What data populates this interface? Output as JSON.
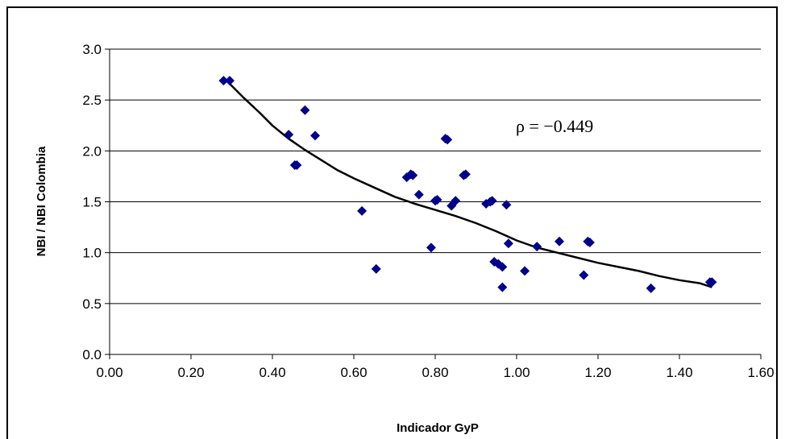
{
  "chart_data": {
    "type": "scatter",
    "title": "",
    "xlabel": "Indicador GyP",
    "ylabel": "NBI / NBI Colombia",
    "xlim": [
      0,
      1.6
    ],
    "ylim": [
      0,
      3.0
    ],
    "x_ticks": [
      "0.00",
      "0.20",
      "0.40",
      "0.60",
      "0.80",
      "1.00",
      "1.20",
      "1.40",
      "1.60"
    ],
    "y_ticks": [
      "0.0",
      "0.5",
      "1.0",
      "1.5",
      "2.0",
      "2.5",
      "3.0"
    ],
    "grid": "horizontal",
    "marker_color": "#00008B",
    "line_color": "#000000",
    "annotation": "ρ = −0.449",
    "series": [
      {
        "kind": "points",
        "points": [
          [
            0.28,
            2.69
          ],
          [
            0.295,
            2.69
          ],
          [
            0.44,
            2.16
          ],
          [
            0.455,
            1.86
          ],
          [
            0.46,
            1.86
          ],
          [
            0.48,
            2.4
          ],
          [
            0.505,
            2.15
          ],
          [
            0.62,
            1.41
          ],
          [
            0.655,
            0.84
          ],
          [
            0.73,
            1.74
          ],
          [
            0.74,
            1.77
          ],
          [
            0.745,
            1.76
          ],
          [
            0.76,
            1.57
          ],
          [
            0.79,
            1.05
          ],
          [
            0.8,
            1.51
          ],
          [
            0.805,
            1.52
          ],
          [
            0.825,
            2.12
          ],
          [
            0.83,
            2.11
          ],
          [
            0.84,
            1.46
          ],
          [
            0.85,
            1.51
          ],
          [
            0.87,
            1.76
          ],
          [
            0.875,
            1.77
          ],
          [
            0.925,
            1.48
          ],
          [
            0.935,
            1.5
          ],
          [
            0.94,
            1.51
          ],
          [
            0.945,
            0.91
          ],
          [
            0.955,
            0.89
          ],
          [
            0.965,
            0.86
          ],
          [
            0.965,
            0.66
          ],
          [
            0.975,
            1.47
          ],
          [
            0.98,
            1.09
          ],
          [
            1.02,
            0.82
          ],
          [
            1.05,
            1.06
          ],
          [
            1.105,
            1.11
          ],
          [
            1.165,
            0.78
          ],
          [
            1.175,
            1.11
          ],
          [
            1.18,
            1.1
          ],
          [
            1.33,
            0.65
          ],
          [
            1.475,
            0.71
          ],
          [
            1.48,
            0.71
          ]
        ]
      },
      {
        "kind": "trend",
        "points": [
          [
            0.29,
            2.68
          ],
          [
            0.33,
            2.52
          ],
          [
            0.37,
            2.37
          ],
          [
            0.4,
            2.25
          ],
          [
            0.44,
            2.12
          ],
          [
            0.48,
            2.01
          ],
          [
            0.52,
            1.91
          ],
          [
            0.56,
            1.81
          ],
          [
            0.6,
            1.73
          ],
          [
            0.65,
            1.64
          ],
          [
            0.7,
            1.55
          ],
          [
            0.75,
            1.48
          ],
          [
            0.8,
            1.42
          ],
          [
            0.85,
            1.36
          ],
          [
            0.9,
            1.29
          ],
          [
            0.95,
            1.21
          ],
          [
            1.0,
            1.12
          ],
          [
            1.05,
            1.05
          ],
          [
            1.1,
            1.0
          ],
          [
            1.15,
            0.95
          ],
          [
            1.2,
            0.9
          ],
          [
            1.25,
            0.86
          ],
          [
            1.3,
            0.82
          ],
          [
            1.35,
            0.77
          ],
          [
            1.4,
            0.73
          ],
          [
            1.45,
            0.7
          ],
          [
            1.48,
            0.66
          ]
        ]
      }
    ]
  }
}
